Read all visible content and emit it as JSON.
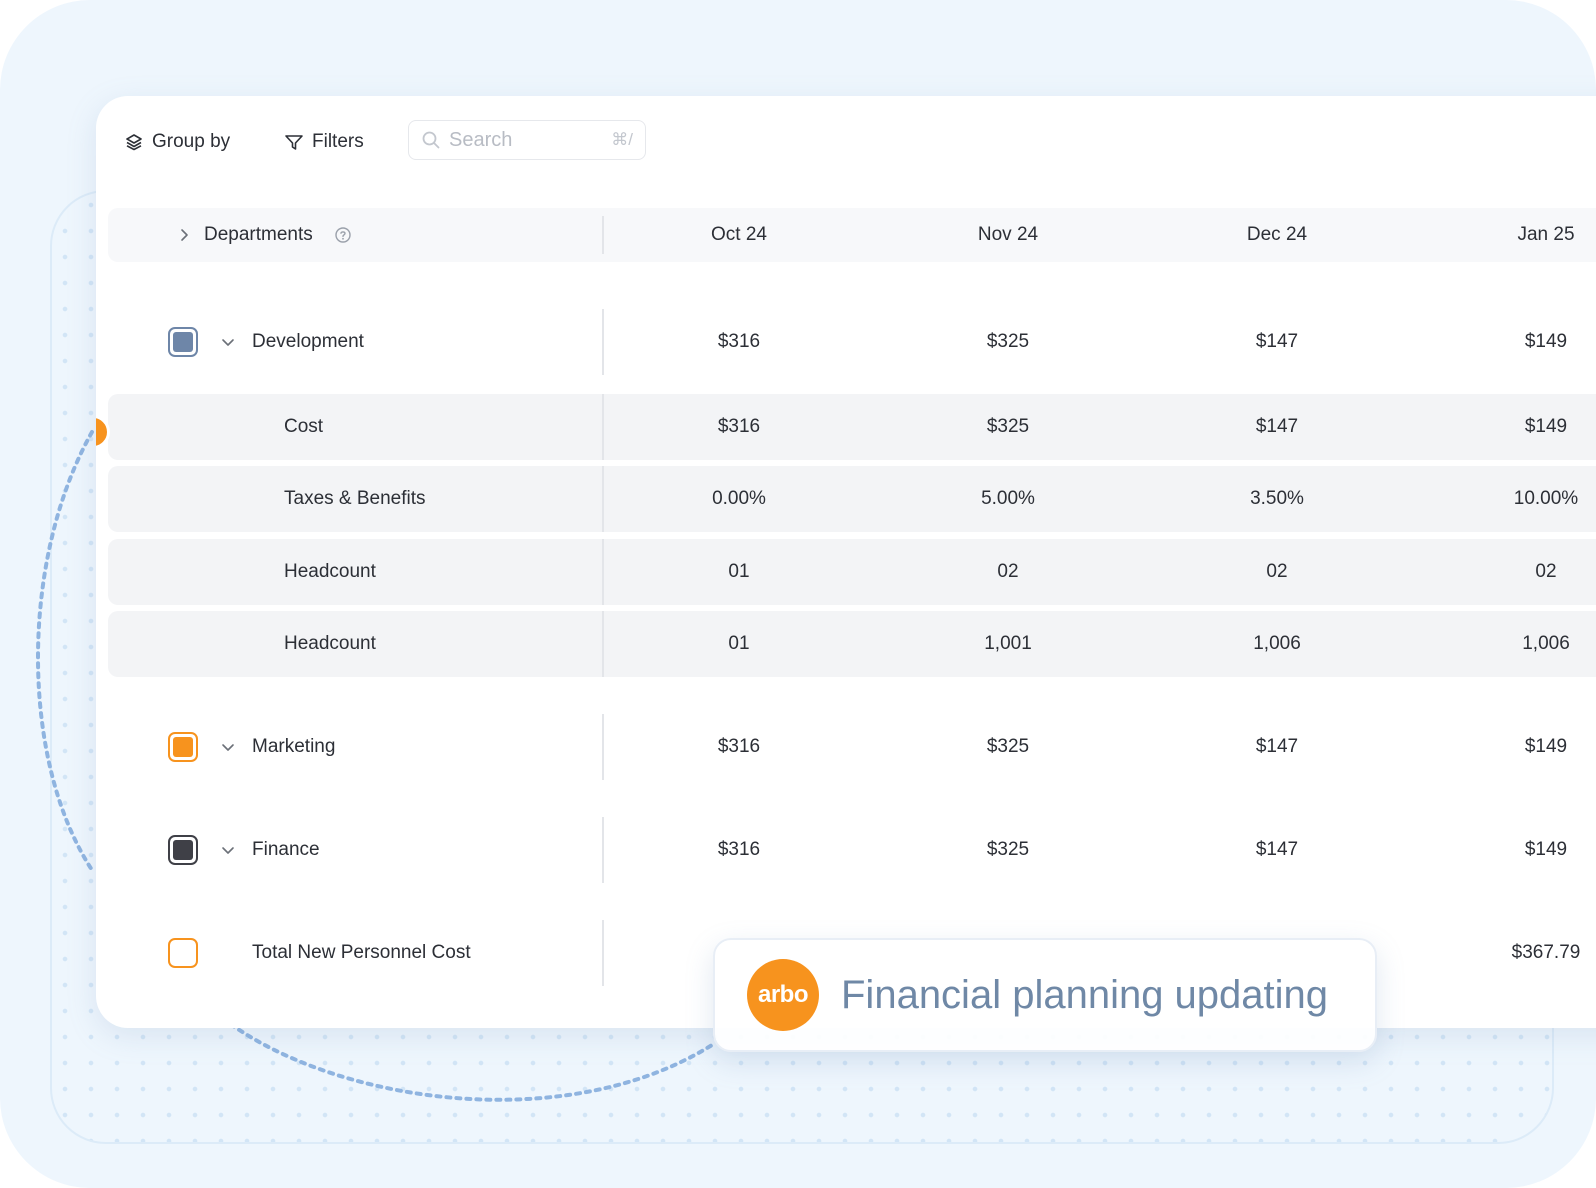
{
  "toolbar": {
    "group_by_label": "Group by",
    "filters_label": "Filters",
    "search_placeholder": "Search",
    "search_shortcut": "⌘/"
  },
  "table": {
    "first_column_label": "Departments",
    "columns": [
      "Oct 24",
      "Nov 24",
      "Dec 24",
      "Jan 25"
    ],
    "rows": [
      {
        "label": "Development",
        "kind": "group",
        "color": "#6e86a8",
        "values": [
          "$316",
          "$325",
          "$147",
          "$149"
        ]
      },
      {
        "label": "Cost",
        "kind": "sub",
        "values": [
          "$316",
          "$325",
          "$147",
          "$149"
        ]
      },
      {
        "label": "Taxes & Benefits",
        "kind": "sub",
        "values": [
          "0.00%",
          "5.00%",
          "3.50%",
          "10.00%"
        ]
      },
      {
        "label": "Headcount",
        "kind": "sub",
        "values": [
          "01",
          "02",
          "02",
          "02"
        ]
      },
      {
        "label": "Headcount",
        "kind": "sub",
        "values": [
          "01",
          "1,001",
          "1,006",
          "1,006"
        ]
      },
      {
        "label": "Marketing",
        "kind": "group",
        "color": "#f7931e",
        "values": [
          "$316",
          "$325",
          "$147",
          "$149"
        ]
      },
      {
        "label": "Finance",
        "kind": "group",
        "color": "#3f4047",
        "values": [
          "$316",
          "$325",
          "$147",
          "$149"
        ]
      },
      {
        "label": "Total New Personnel Cost",
        "kind": "total",
        "color": "#f7931e",
        "values": [
          "",
          "",
          "",
          "$367.79"
        ]
      }
    ]
  },
  "toast": {
    "logo_text": "arbo",
    "message": "Financial planning updating"
  },
  "colors": {
    "accent": "#f7931e",
    "toast_text": "#6f88a6"
  }
}
